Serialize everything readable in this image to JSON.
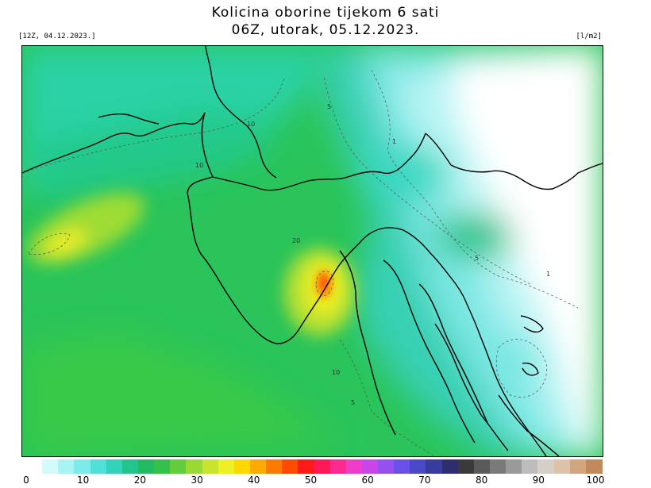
{
  "title": {
    "line1": "Kolicina oborine tijekom 6 sati",
    "line2": "06Z, utorak, 05.12.2023."
  },
  "run_label": "[12Z, 04.12.2023.]",
  "unit_label": "[l/m2]",
  "contour_labels": [
    "10",
    "5",
    "1",
    "10",
    "20",
    "5",
    "1",
    "10",
    "5"
  ],
  "legend": {
    "ticks": [
      "0",
      "10",
      "20",
      "30",
      "40",
      "50",
      "60",
      "70",
      "80",
      "90",
      "100"
    ],
    "colors": [
      "#ffffff",
      "#d2fbfb",
      "#a8f4f4",
      "#7ceceb",
      "#4fe1d8",
      "#2fd3b8",
      "#22c48e",
      "#21bb62",
      "#33c04b",
      "#63cc3c",
      "#98d933",
      "#c8e42c",
      "#eef024",
      "#ffd800",
      "#ffaa00",
      "#ff7a00",
      "#ff4a00",
      "#ff1a1a",
      "#ff1a55",
      "#ff2a90",
      "#f03cc8",
      "#c846e8",
      "#9650f0",
      "#6a50e8",
      "#4a48c8",
      "#383c9c",
      "#2e2e6e",
      "#3a3a3a",
      "#5a5a5a",
      "#7a7a7a",
      "#9a9a9a",
      "#bdbdbd",
      "#d6cfc8",
      "#dcc2a8",
      "#d1a67f",
      "#c28a5c"
    ]
  }
}
